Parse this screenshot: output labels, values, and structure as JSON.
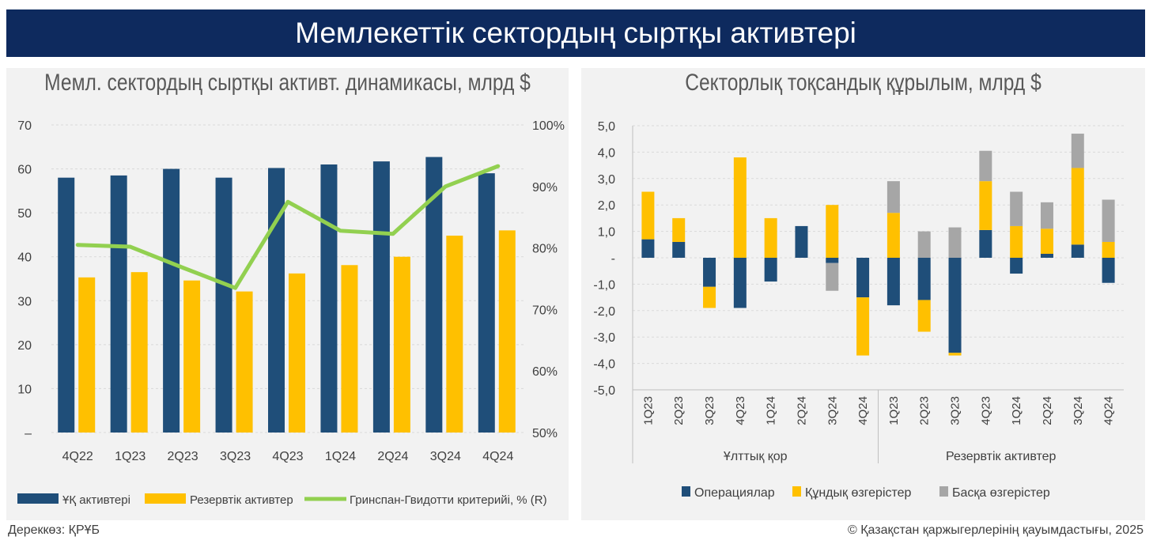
{
  "banner_title": "Мемлекеттік сектордың сыртқы активтері",
  "footer": {
    "source": "Дереккөз: ҚРҰБ",
    "copyright": "© Қазақстан қаржыгерлерінің қауымдастығы, 2025"
  },
  "colors": {
    "navy": "#1f4e79",
    "gold": "#ffc000",
    "gray": "#a6a6a6",
    "green": "#92d050",
    "banner": "#0e2a5e"
  },
  "chart_data": [
    {
      "type": "bar",
      "title": "Мемл. сектордың сыртқы активт. динамикасы, млрд $",
      "categories": [
        "4Q22",
        "1Q23",
        "2Q23",
        "3Q23",
        "4Q23",
        "1Q24",
        "2Q24",
        "3Q24",
        "4Q24"
      ],
      "ylim": [
        0,
        70
      ],
      "y_ticks": [
        "–",
        "10",
        "20",
        "30",
        "40",
        "50",
        "60",
        "70"
      ],
      "y2lim": [
        50,
        100
      ],
      "y2_ticks": [
        "50%",
        "60%",
        "70%",
        "80%",
        "90%",
        "100%"
      ],
      "grid": true,
      "legend_position": "bottom",
      "series": [
        {
          "name": "ҰҚ активтері",
          "kind": "bar",
          "color": "#1f4e79",
          "values": [
            58.0,
            58.5,
            60.0,
            58.0,
            60.2,
            61.0,
            61.7,
            62.7,
            59.0
          ]
        },
        {
          "name": "Резервтік активтер",
          "kind": "bar",
          "color": "#ffc000",
          "values": [
            35.3,
            36.5,
            34.6,
            32.1,
            36.2,
            38.1,
            40.0,
            44.8,
            46.0
          ]
        },
        {
          "name": "Гринспан-Гвидотти критерийі, % (R)",
          "kind": "line",
          "axis": "right",
          "color": "#92d050",
          "values": [
            80.5,
            80.2,
            76.8,
            73.5,
            87.5,
            82.8,
            82.3,
            90.0,
            93.3
          ]
        }
      ]
    },
    {
      "type": "bar",
      "stacked": true,
      "title": "Секторлық тоқсандық құрылым, млрд $",
      "categories": [
        "1Q23",
        "2Q23",
        "3Q23",
        "4Q23",
        "1Q24",
        "2Q24",
        "3Q24",
        "4Q24",
        "1Q23",
        "2Q23",
        "3Q23",
        "4Q23",
        "1Q24",
        "2Q24",
        "3Q24",
        "4Q24"
      ],
      "groups": [
        {
          "label": "Ұлттық қор",
          "count": 8
        },
        {
          "label": "Резервтік активтер",
          "count": 8
        }
      ],
      "ylim": [
        -5,
        5
      ],
      "y_ticks": [
        "5,0",
        "4,0",
        "3,0",
        "2,0",
        "1,0",
        "-",
        "-1,0",
        "-2,0",
        "-3,0",
        "-4,0",
        "-5,0"
      ],
      "grid": true,
      "legend_position": "bottom",
      "series": [
        {
          "name": "Операциялар",
          "color": "#1f4e79",
          "values": [
            0.7,
            0.6,
            -1.1,
            -1.9,
            -0.9,
            1.2,
            -0.2,
            -1.5,
            -1.8,
            -1.6,
            -3.6,
            1.05,
            -0.6,
            0.15,
            0.5,
            -0.95
          ]
        },
        {
          "name": "Құндық өзгерістер",
          "color": "#ffc000",
          "values": [
            1.8,
            0.9,
            -0.8,
            3.8,
            1.5,
            0.0,
            2.0,
            -2.2,
            1.7,
            -1.2,
            -0.1,
            1.85,
            1.2,
            0.95,
            2.9,
            0.6
          ]
        },
        {
          "name": "Басқа өзгерістер",
          "color": "#a6a6a6",
          "values": [
            0.0,
            0.0,
            0.0,
            0.0,
            0.0,
            0.0,
            -1.05,
            0.0,
            1.2,
            1.0,
            1.15,
            1.15,
            1.3,
            1.0,
            1.3,
            1.6
          ]
        }
      ]
    }
  ]
}
